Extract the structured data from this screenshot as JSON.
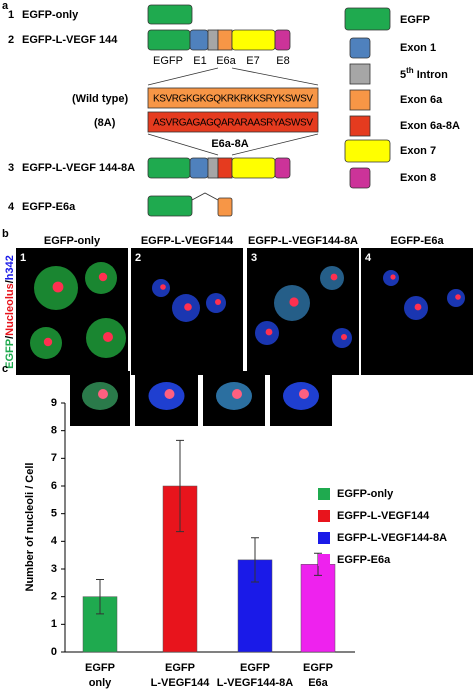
{
  "panel_a": {
    "letter": "a",
    "constructs": [
      {
        "number": "1",
        "name": "EGFP-only"
      },
      {
        "number": "2",
        "name": "EGFP-L-VEGF 144"
      },
      {
        "number": "3",
        "name": "EGFP-L-VEGF 144-8A"
      },
      {
        "number": "4",
        "name": "EGFP-E6a"
      }
    ],
    "segment_labels": [
      "EGFP",
      "E1",
      "E6a",
      "E7",
      "E8"
    ],
    "wild_type_label": "(Wild type)",
    "wild_type_sequence": "KSVRGKGKGQKRKRKKSRYKSWSV",
    "mutant_label": "(8A)",
    "mutant_sequence": "ASVRGAGAGQARARAASRYASWSV",
    "mutant_name": "E6a-8A",
    "legend": [
      "EGFP",
      "Exon 1",
      {
        "number": "5",
        "suffix": "th",
        "text": "Intron"
      },
      "Exon 6a",
      "Exon 6a-8A",
      "Exon 7",
      "Exon 8"
    ]
  },
  "panel_b": {
    "letter": "b",
    "stain_labels": [
      "EGFP",
      "/",
      "Nucleolus",
      "/",
      "h342"
    ],
    "images": [
      {
        "number": "1",
        "title": "EGFP-only"
      },
      {
        "number": "2",
        "title": "EGFP-L-VEGF144"
      },
      {
        "number": "3",
        "title": "EGFP-L-VEGF144-8A"
      },
      {
        "number": "4",
        "title": "EGFP-E6a"
      }
    ]
  },
  "panel_c_letter": "c",
  "chart_data": {
    "type": "bar",
    "y_label": "Number of nucleoli / Cell",
    "categories": [
      [
        "EGFP",
        "only"
      ],
      [
        "EGFP",
        "L-VEGF144"
      ],
      [
        "EGFP",
        "L-VEGF144-8A"
      ],
      [
        "EGFP",
        "E6a"
      ]
    ],
    "values": [
      2.0,
      6.0,
      3.33,
      3.17
    ],
    "errors": [
      0.62,
      1.65,
      0.8,
      0.4
    ],
    "colors": [
      "#1faa4f",
      "#e8141c",
      "#1a1ae8",
      "#ee22ee"
    ],
    "legend": [
      "EGFP-only",
      "EGFP-L-VEGF144",
      "EGFP-L-VEGF144-8A",
      "EGFP-E6a"
    ],
    "ylim": [
      0,
      9
    ],
    "yticks": [
      0,
      1,
      2,
      3,
      4,
      5,
      6,
      7,
      8,
      9
    ]
  }
}
